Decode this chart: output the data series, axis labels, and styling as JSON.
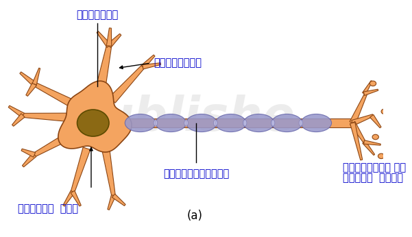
{
  "bg_color": "#ffffff",
  "cell_body_color": "#F4A460",
  "cell_body_outline": "#8B4513",
  "nucleus_color": "#8B6914",
  "nucleus_outline": "#5C4A00",
  "axon_color": "#F4A460",
  "myelin_color": "#9999CC",
  "myelin_outline": "#6666AA",
  "dendrite_color": "#F4A460",
  "dendrite_outline": "#8B4513",
  "label_color": "#0000CC",
  "arrow_color": "#000000",
  "title_label": "(a)",
  "label_kendrak": "केंद्रक",
  "label_drumika": "द्रुमिका",
  "label_tantrikaksh": "तंत्रिकाक्ष",
  "label_koshika": "कोशिका  काय",
  "label_antim_line1": "तंत्रिका का",
  "label_antim_line2": "अंतिम  सिरा"
}
